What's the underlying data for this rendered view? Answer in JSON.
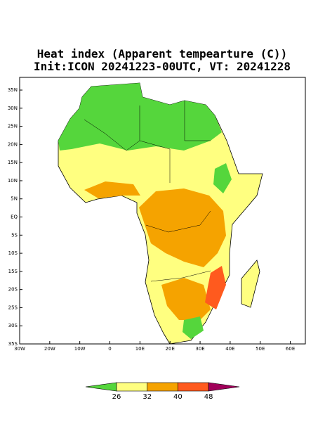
{
  "chart_data": {
    "type": "map",
    "title": "Heat index (Apparent tempearture (C))",
    "subtitle": "Init:ICON 20241223-00UTC, VT: 20241228",
    "xlim": [
      -30,
      65
    ],
    "ylim": [
      -35,
      38.5
    ],
    "xticks": [
      {
        "value": -30,
        "label": "30W"
      },
      {
        "value": -20,
        "label": "20W"
      },
      {
        "value": -10,
        "label": "10W"
      },
      0,
      {
        "value": 10,
        "label": "10E"
      },
      {
        "value": 20,
        "label": "20E"
      },
      {
        "value": 30,
        "label": "30E"
      },
      {
        "value": 40,
        "label": "40E"
      },
      {
        "value": 50,
        "label": "50E"
      },
      {
        "value": 60,
        "label": "60E"
      }
    ],
    "yticks": [
      {
        "value": 35,
        "label": "35N"
      },
      {
        "value": 30,
        "label": "30N"
      },
      {
        "value": 25,
        "label": "25N"
      },
      {
        "value": 20,
        "label": "20N"
      },
      {
        "value": 15,
        "label": "15N"
      },
      {
        "value": 10,
        "label": "10N"
      },
      {
        "value": 5,
        "label": "5N"
      },
      {
        "value": 0,
        "label": "EQ"
      },
      {
        "value": -5,
        "label": "5S"
      },
      {
        "value": -10,
        "label": "10S"
      },
      {
        "value": -15,
        "label": "15S"
      },
      {
        "value": -20,
        "label": "20S"
      },
      {
        "value": -25,
        "label": "25S"
      },
      {
        "value": -30,
        "label": "30S"
      },
      {
        "value": -35,
        "label": "35S"
      }
    ],
    "colorbar": {
      "ticks": [
        26,
        32,
        40,
        48
      ],
      "colors": [
        "#55d63c",
        "#ffff80",
        "#f5a300",
        "#ff5a1e",
        "#a0005a"
      ]
    }
  }
}
